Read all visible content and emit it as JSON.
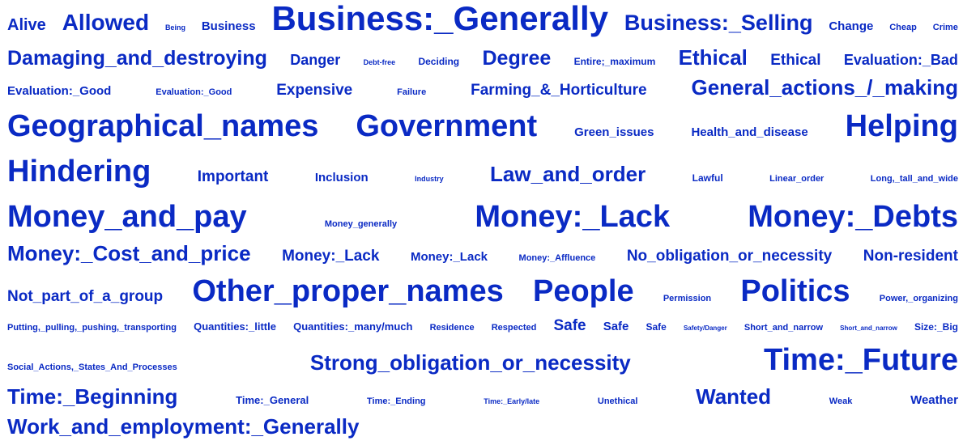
{
  "color": "#0a2ac4",
  "lines": [
    [
      {
        "text": "Alive",
        "size": 20
      },
      {
        "text": "Allowed",
        "size": 28
      },
      {
        "text": "Being",
        "size": 9
      },
      {
        "text": "Business",
        "size": 15
      },
      {
        "text": "Business:_Generally",
        "size": 42
      },
      {
        "text": "Business:_Selling",
        "size": 27
      },
      {
        "text": "Change",
        "size": 15
      },
      {
        "text": "Cheap",
        "size": 11
      },
      {
        "text": "Crime",
        "size": 11
      }
    ],
    [
      {
        "text": "Damaging_and_destroying",
        "size": 25
      },
      {
        "text": "Danger",
        "size": 18
      },
      {
        "text": "Debt-free",
        "size": 9
      },
      {
        "text": "Deciding",
        "size": 12
      },
      {
        "text": "Degree",
        "size": 25
      },
      {
        "text": "Entire;_maximum",
        "size": 12
      },
      {
        "text": "Ethical",
        "size": 26
      },
      {
        "text": "Ethical",
        "size": 19
      },
      {
        "text": "Evaluation:_Bad",
        "size": 18
      }
    ],
    [
      {
        "text": "Evaluation:_Good",
        "size": 15
      },
      {
        "text": "Evaluation:_Good",
        "size": 11
      },
      {
        "text": "Expensive",
        "size": 19
      },
      {
        "text": "Failure",
        "size": 11
      },
      {
        "text": "Farming_&_Horticulture",
        "size": 19
      },
      {
        "text": "General_actions_/_making",
        "size": 26
      }
    ],
    [
      {
        "text": "Geographical_names",
        "size": 38
      },
      {
        "text": "Government",
        "size": 38
      },
      {
        "text": "Green_issues",
        "size": 15
      },
      {
        "text": "Health_and_disease",
        "size": 15
      },
      {
        "text": "Helping",
        "size": 38
      }
    ],
    [
      {
        "text": "Hindering",
        "size": 38
      },
      {
        "text": "Important",
        "size": 19
      },
      {
        "text": "Inclusion",
        "size": 15
      },
      {
        "text": "Industry",
        "size": 9
      },
      {
        "text": "Law_and_order",
        "size": 26
      },
      {
        "text": "Lawful",
        "size": 12
      },
      {
        "text": "Linear_order",
        "size": 11
      },
      {
        "text": "Long,_tall_and_wide",
        "size": 11
      }
    ],
    [
      {
        "text": "Money_and_pay",
        "size": 38
      },
      {
        "text": "Money_generally",
        "size": 11
      },
      {
        "text": "Money:_Lack",
        "size": 38
      },
      {
        "text": "Money:_Debts",
        "size": 38
      }
    ],
    [
      {
        "text": "Money:_Cost_and_price",
        "size": 26
      },
      {
        "text": "Money:_Lack",
        "size": 19
      },
      {
        "text": "Money:_Lack",
        "size": 15
      },
      {
        "text": "Money:_Affluence",
        "size": 11
      },
      {
        "text": "No_obligation_or_necessity",
        "size": 19
      },
      {
        "text": "Non-resident",
        "size": 19
      }
    ],
    [
      {
        "text": "Not_part_of_a_group",
        "size": 19
      },
      {
        "text": "Other_proper_names",
        "size": 38
      },
      {
        "text": "People",
        "size": 38
      },
      {
        "text": "Permission",
        "size": 11
      },
      {
        "text": "Politics",
        "size": 38
      },
      {
        "text": "Power,_organizing",
        "size": 11
      }
    ],
    [
      {
        "text": "Putting,_pulling,_pushing,_transporting",
        "size": 11
      },
      {
        "text": "Quantities:_little",
        "size": 13
      },
      {
        "text": "Quantities:_many/much",
        "size": 13
      },
      {
        "text": "Residence",
        "size": 11
      },
      {
        "text": "Respected",
        "size": 11
      },
      {
        "text": "Safe",
        "size": 19
      },
      {
        "text": "Safe",
        "size": 15
      },
      {
        "text": "Safe",
        "size": 12
      },
      {
        "text": "Safety/Danger",
        "size": 8
      },
      {
        "text": "Short_and_narrow",
        "size": 11
      },
      {
        "text": "Short_and_narrow",
        "size": 8
      },
      {
        "text": "Size:_Big",
        "size": 12
      }
    ],
    [
      {
        "text": "Social_Actions,_States_And_Processes",
        "size": 11
      },
      {
        "text": "Strong_obligation_or_necessity",
        "size": 26
      },
      {
        "text": "Time:_Future",
        "size": 38
      }
    ],
    [
      {
        "text": "Time:_Beginning",
        "size": 26
      },
      {
        "text": "Time:_General",
        "size": 13
      },
      {
        "text": "Time:_Ending",
        "size": 11
      },
      {
        "text": "Time:_Early/late",
        "size": 9
      },
      {
        "text": "Unethical",
        "size": 11
      },
      {
        "text": "Wanted",
        "size": 26
      },
      {
        "text": "Weak",
        "size": 11
      },
      {
        "text": "Weather",
        "size": 15
      }
    ],
    [
      {
        "text": "Work_and_employment:_Generally",
        "size": 26
      }
    ]
  ]
}
